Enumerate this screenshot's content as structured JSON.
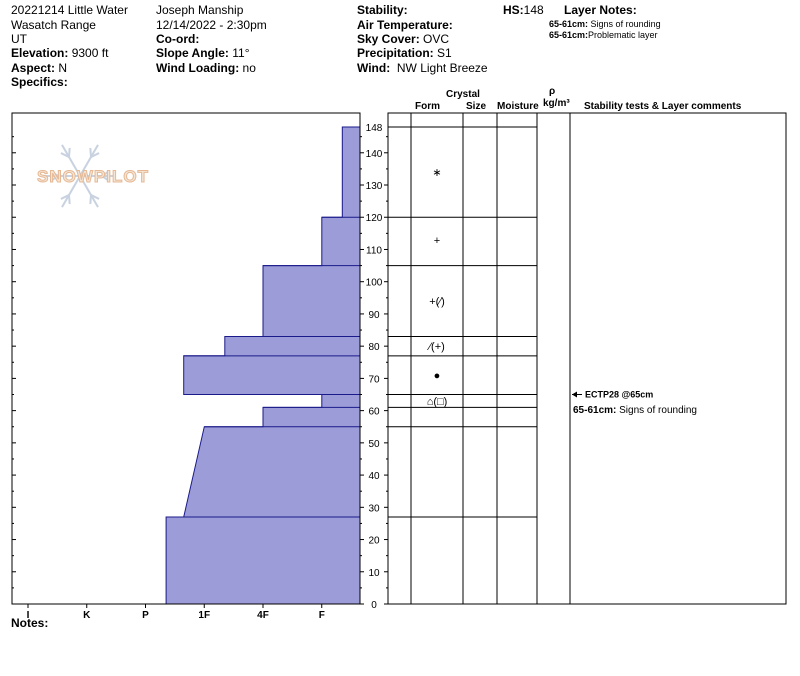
{
  "header": {
    "site_line": "20221214 Little Water",
    "range": "Wasatch Range",
    "state": "UT",
    "elevation_label": "Elevation:",
    "elevation_value": "9300 ft",
    "aspect_label": "Aspect:",
    "aspect_value": "N",
    "specifics_label": "Specifics:",
    "observer": "Joseph Manship",
    "datetime": "12/14/2022 - 2:30pm",
    "coord_label": "Co-ord:",
    "slope_label": "Slope Angle:",
    "slope_value": "11°",
    "wind_loading_label": "Wind Loading:",
    "wind_loading_value": "no",
    "stability_label": "Stability:",
    "air_temp_label": "Air Temperature:",
    "sky_label": "Sky Cover:",
    "sky_value": "OVC",
    "precip_label": "Precipitation:",
    "precip_value": "S1",
    "wind_label": "Wind:",
    "wind_value": "NW Light Breeze",
    "hs_label": "HS:",
    "hs_value": "148",
    "layer_notes_label": "Layer Notes:",
    "layer_notes": [
      {
        "range": "65-61cm:",
        "text": "Signs of rounding"
      },
      {
        "range": "65-61cm:",
        "text": "Problematic layer"
      }
    ]
  },
  "table_headers": {
    "crystal": "Crystal",
    "form": "Form",
    "size": "Size",
    "moisture": "Moisture",
    "rho": "ρ",
    "density_unit": "kg/m³",
    "stability": "Stability tests & Layer comments"
  },
  "logo_text": "SNOWPILOT",
  "notes_label": "Notes:",
  "colors": {
    "fill": "#9c9cd8",
    "edge": "#1a1a8a"
  },
  "chart_data": {
    "type": "snow-profile-hardness",
    "hardness_scale": [
      "I",
      "K",
      "P",
      "1F",
      "4F",
      "F"
    ],
    "depth_ticks": [
      0,
      10,
      20,
      30,
      40,
      50,
      60,
      70,
      80,
      90,
      100,
      110,
      120,
      130,
      140,
      148
    ],
    "ylim": [
      0,
      148
    ],
    "hardness_profile": [
      {
        "top": 148,
        "bottom": 120,
        "hardness": 5.35
      },
      {
        "top": 120,
        "bottom": 105,
        "hardness": 5.0
      },
      {
        "top": 105,
        "bottom": 83,
        "hardness": 4.0
      },
      {
        "top": 83,
        "bottom": 77,
        "hardness": 3.35
      },
      {
        "top": 77,
        "bottom": 65,
        "hardness": 2.65
      },
      {
        "top": 65,
        "bottom": 61,
        "hardness": 5.0
      },
      {
        "top": 61,
        "bottom": 55,
        "hardness": 4.0
      },
      {
        "top": 55,
        "bottom": 27,
        "hardness_top": 3.0,
        "hardness_bottom": 2.65
      },
      {
        "top": 27,
        "bottom": 0,
        "hardness": 2.35
      }
    ],
    "layer_boundaries": [
      148,
      120,
      105,
      83,
      77,
      65,
      61,
      55,
      27,
      0
    ],
    "grain_forms": [
      {
        "depth": 134,
        "symbol": "∗"
      },
      {
        "depth": 113,
        "symbol": "+"
      },
      {
        "depth": 94,
        "symbol": "+(⁄)"
      },
      {
        "depth": 80,
        "symbol": "⁄(+)"
      },
      {
        "depth": 71,
        "symbol": "●"
      },
      {
        "depth": 63,
        "symbol": "⌂(□)"
      }
    ],
    "comments": [
      {
        "depth": 65,
        "label": "ECTP28 @65cm"
      },
      {
        "depth": 60.5,
        "range": "65-61cm:",
        "text": "Signs of rounding"
      }
    ]
  }
}
